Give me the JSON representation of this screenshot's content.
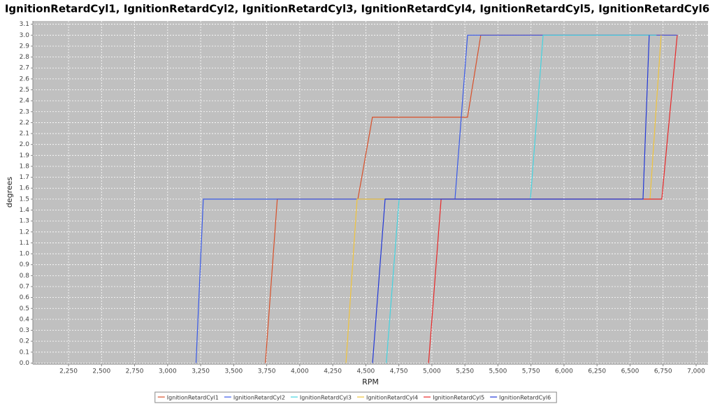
{
  "chart_data": {
    "type": "line",
    "title": "IgnitionRetardCyl1, IgnitionRetardCyl2, IgnitionRetardCyl3, IgnitionRetardCyl4, IgnitionRetardCyl5, IgnitionRetardCyl6",
    "x_label": "RPM",
    "y_label": "degrees",
    "xlim": [
      1980,
      7090
    ],
    "ylim": [
      -0.01,
      3.13
    ],
    "xticks": [
      {
        "value": 2250,
        "label": "2,250"
      },
      {
        "value": 2500,
        "label": "2,500"
      },
      {
        "value": 2750,
        "label": "2,750"
      },
      {
        "value": 3000,
        "label": "3,000"
      },
      {
        "value": 3250,
        "label": "3,250"
      },
      {
        "value": 3500,
        "label": "3,500"
      },
      {
        "value": 3750,
        "label": "3,750"
      },
      {
        "value": 4000,
        "label": "4,000"
      },
      {
        "value": 4250,
        "label": "4,250"
      },
      {
        "value": 4500,
        "label": "4,500"
      },
      {
        "value": 4750,
        "label": "4,750"
      },
      {
        "value": 5000,
        "label": "5,000"
      },
      {
        "value": 5250,
        "label": "5,250"
      },
      {
        "value": 5500,
        "label": "5,500"
      },
      {
        "value": 5750,
        "label": "5,750"
      },
      {
        "value": 6000,
        "label": "6,000"
      },
      {
        "value": 6250,
        "label": "6,250"
      },
      {
        "value": 6500,
        "label": "6,500"
      },
      {
        "value": 6750,
        "label": "6,750"
      },
      {
        "value": 7000,
        "label": "7,000"
      }
    ],
    "yticks": [
      {
        "value": 0,
        "label": "0.0"
      },
      0.1,
      0.2,
      0.3,
      0.4,
      0.5,
      0.6,
      0.7,
      0.8,
      0.9,
      {
        "value": 1,
        "label": "1.0"
      },
      1.1,
      1.2,
      1.3,
      1.4,
      1.5,
      1.6,
      1.7,
      1.8,
      1.9,
      {
        "value": 2,
        "label": "2.0"
      },
      2.1,
      2.2,
      2.3,
      2.4,
      2.5,
      2.6,
      2.7,
      2.8,
      2.9,
      {
        "value": 3,
        "label": "3.0"
      },
      3.1
    ],
    "grid": true,
    "series": [
      {
        "name": "IgnitionRetardCyl1",
        "color": "#d8502a",
        "x": [
          3740,
          3830,
          4440,
          4550,
          5270,
          5370,
          6850
        ],
        "values": [
          0,
          1.5,
          1.5,
          2.25,
          2.25,
          3,
          3
        ]
      },
      {
        "name": "IgnitionRetardCyl2",
        "color": "#3a5ae8",
        "x": [
          3215,
          3270,
          5175,
          5270,
          6860
        ],
        "values": [
          0,
          1.5,
          1.5,
          3,
          3
        ]
      },
      {
        "name": "IgnitionRetardCyl3",
        "color": "#44d4e0",
        "x": [
          4655,
          4752,
          5746,
          5842,
          6700
        ],
        "values": [
          0,
          1.5,
          1.5,
          3,
          3
        ]
      },
      {
        "name": "IgnitionRetardCyl4",
        "color": "#f0c43c",
        "x": [
          4350,
          4434,
          6651,
          6735
        ],
        "values": [
          0,
          1.5,
          1.5,
          3
        ]
      },
      {
        "name": "IgnitionRetardCyl5",
        "color": "#e82828",
        "x": [
          4975,
          5070,
          6740,
          6857
        ],
        "values": [
          0,
          1.5,
          1.5,
          3
        ]
      },
      {
        "name": "IgnitionRetardCyl6",
        "color": "#2238d8",
        "x": [
          4551,
          4646,
          6598,
          6645
        ],
        "values": [
          0,
          1.5,
          1.5,
          3
        ]
      }
    ]
  }
}
